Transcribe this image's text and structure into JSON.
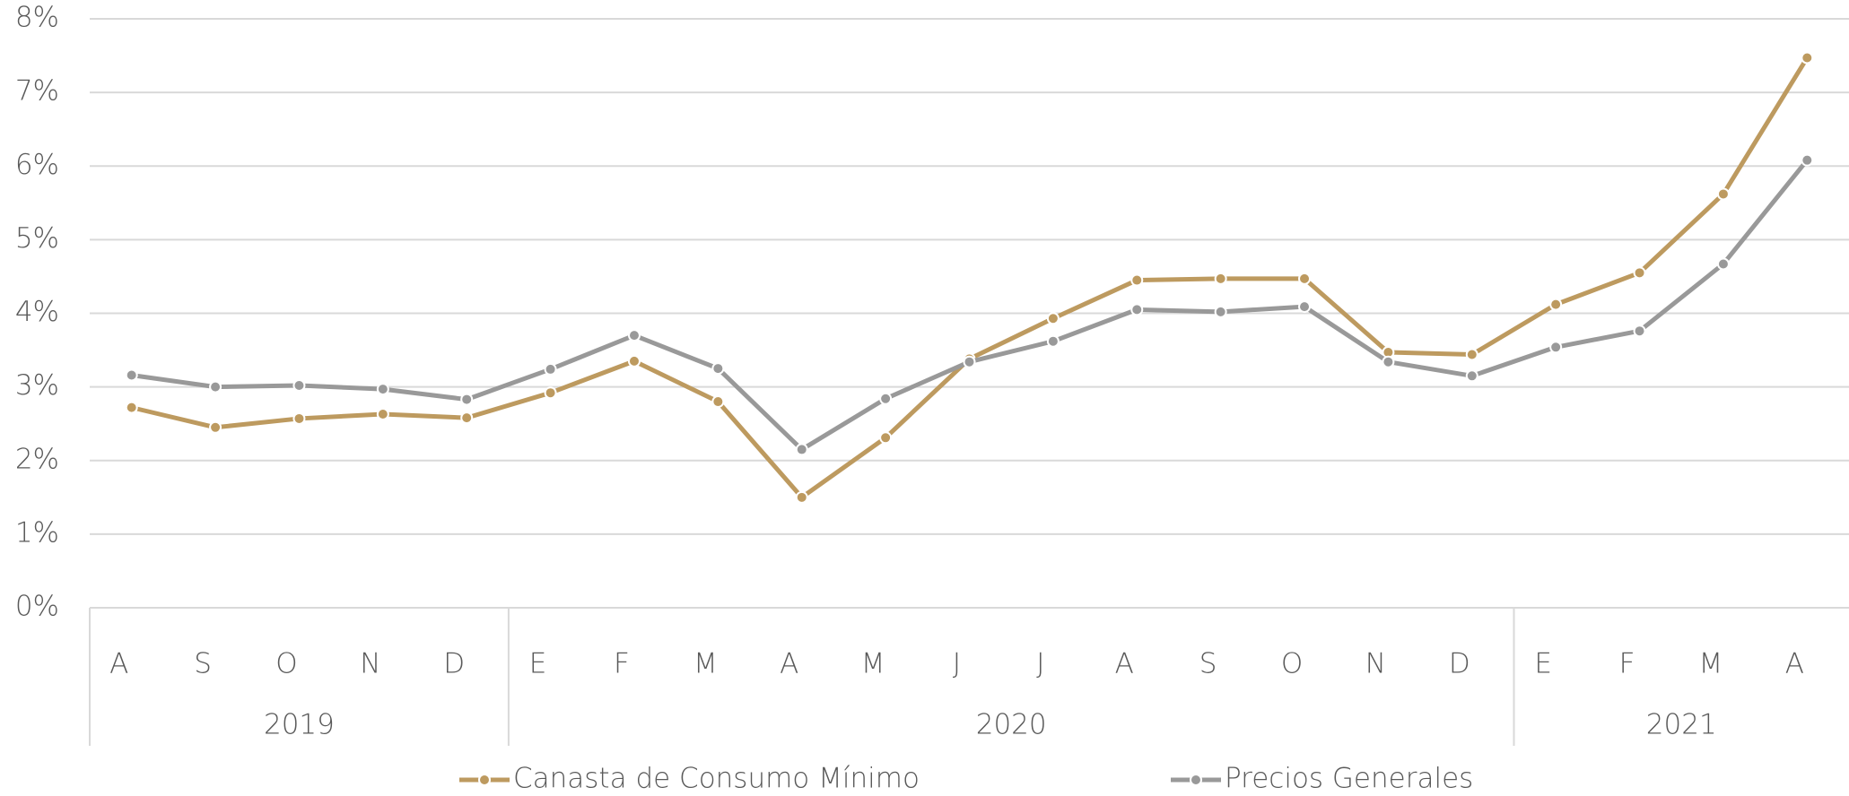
{
  "chart_data": {
    "type": "line",
    "categories": [
      "A",
      "S",
      "O",
      "N",
      "D",
      "E",
      "F",
      "M",
      "A",
      "M",
      "J",
      "J",
      "A",
      "S",
      "O",
      "N",
      "D",
      "E",
      "F",
      "M",
      "A"
    ],
    "groups": [
      {
        "label": "2019",
        "count": 5
      },
      {
        "label": "2020",
        "count": 12
      },
      {
        "label": "2021",
        "count": 4
      }
    ],
    "series": [
      {
        "name": "Canasta de Consumo Mínimo",
        "color": "#bd9a5f",
        "values": [
          2.72,
          2.45,
          2.57,
          2.63,
          2.58,
          2.92,
          3.35,
          2.8,
          1.5,
          2.31,
          3.38,
          3.93,
          4.45,
          4.47,
          4.47,
          3.47,
          3.44,
          4.12,
          4.55,
          5.62,
          7.47
        ]
      },
      {
        "name": "Precios Generales",
        "color": "#999999",
        "values": [
          3.16,
          3.0,
          3.02,
          2.97,
          2.83,
          3.24,
          3.7,
          3.25,
          2.15,
          2.84,
          3.34,
          3.62,
          4.05,
          4.02,
          4.09,
          3.34,
          3.15,
          3.54,
          3.76,
          4.67,
          6.08
        ]
      }
    ],
    "ylim": [
      0,
      8
    ],
    "yticks": [
      {
        "value": 0,
        "label": "0%"
      },
      {
        "value": 1,
        "label": "1%"
      },
      {
        "value": 2,
        "label": "2%"
      },
      {
        "value": 3,
        "label": "3%"
      },
      {
        "value": 4,
        "label": "4%"
      },
      {
        "value": 5,
        "label": "5%"
      },
      {
        "value": 6,
        "label": "6%"
      },
      {
        "value": 7,
        "label": "7%"
      },
      {
        "value": 8,
        "label": "8%"
      }
    ],
    "grid": true,
    "legend": "bottom"
  }
}
